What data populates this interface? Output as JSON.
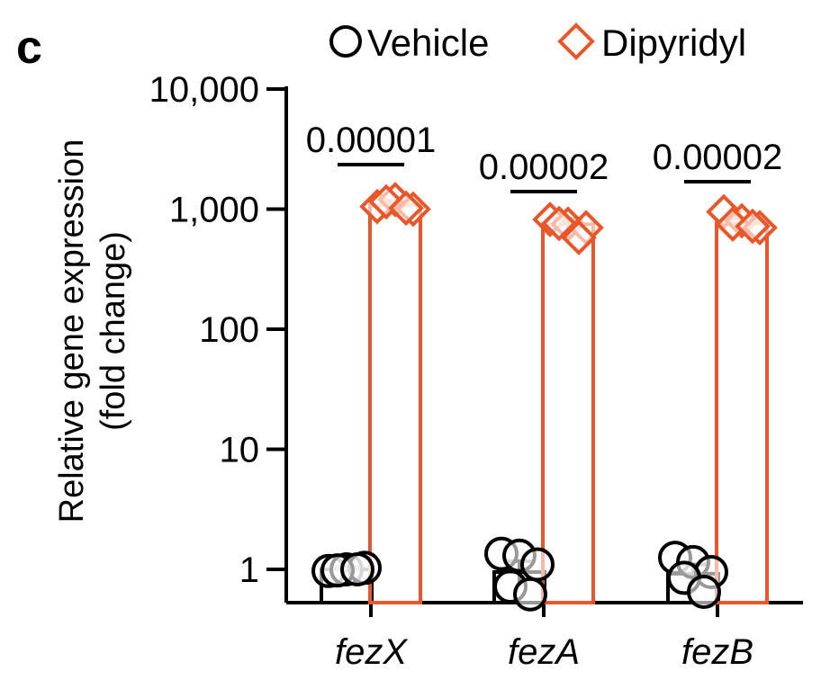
{
  "panel_label": "c",
  "legend": {
    "vehicle_label": "Vehicle",
    "dipyridyl_label": "Dipyridyl"
  },
  "colors": {
    "vehicle": "#000000",
    "dipyridyl": "#e8572a",
    "axis": "#000000"
  },
  "chart_data": {
    "type": "bar",
    "yscale": "log",
    "ylim": [
      0.75,
      10000
    ],
    "ylabel_line1": "Relative gene expression",
    "ylabel_line2": "(fold change)",
    "yticks": [
      1,
      10,
      100,
      1000,
      10000
    ],
    "ytick_labels": [
      "1",
      "10",
      "100",
      "1,000",
      "10,000"
    ],
    "categories": [
      "fezX",
      "fezA",
      "fezB"
    ],
    "series": [
      {
        "name": "Vehicle",
        "marker": "circle",
        "values": [
          1.0,
          0.95,
          0.92
        ],
        "errors": [
          0.05,
          0.22,
          0.18
        ],
        "points": [
          [
            0.97,
            1.0,
            1.03,
            0.98,
            1.0
          ],
          [
            1.35,
            1.3,
            1.1,
            0.72,
            0.62
          ],
          [
            1.25,
            1.15,
            0.95,
            0.85,
            0.65
          ]
        ]
      },
      {
        "name": "Dipyridyl",
        "marker": "diamond",
        "values": [
          1080,
          750,
          760
        ],
        "errors": [
          90,
          80,
          70
        ],
        "points": [
          [
            1050,
            1200,
            1000,
            1150,
            1020
          ],
          [
            820,
            750,
            700,
            760,
            580
          ],
          [
            950,
            800,
            700,
            750,
            720
          ]
        ]
      }
    ],
    "annotations": [
      "0.00001",
      "0.00002",
      "0.00002"
    ]
  }
}
